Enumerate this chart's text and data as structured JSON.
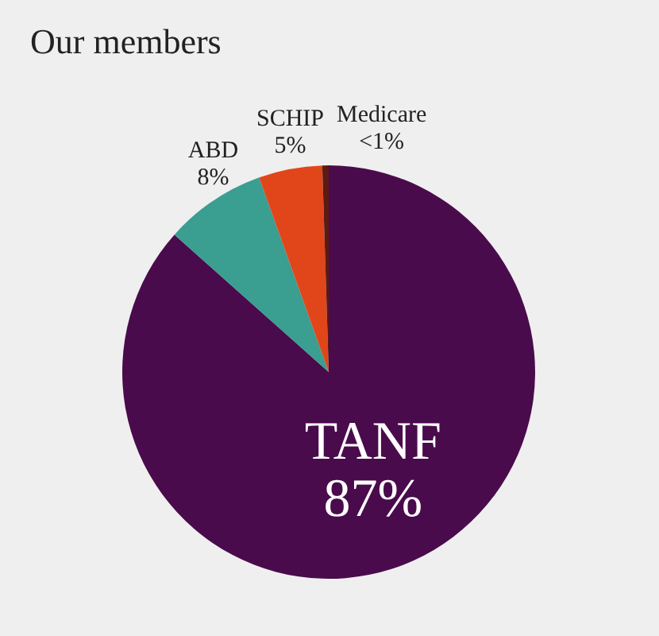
{
  "chart_data": {
    "type": "pie",
    "title": "Our members",
    "categories": [
      "TANF",
      "ABD",
      "SCHIP",
      "Medicare"
    ],
    "values": [
      87,
      8,
      5,
      0.5
    ],
    "value_labels": [
      "87%",
      "8%",
      "5%",
      "<1%"
    ],
    "colors": [
      "#4a0b4c",
      "#3a9e90",
      "#e0461a",
      "#5c1a12"
    ],
    "legend": false
  }
}
